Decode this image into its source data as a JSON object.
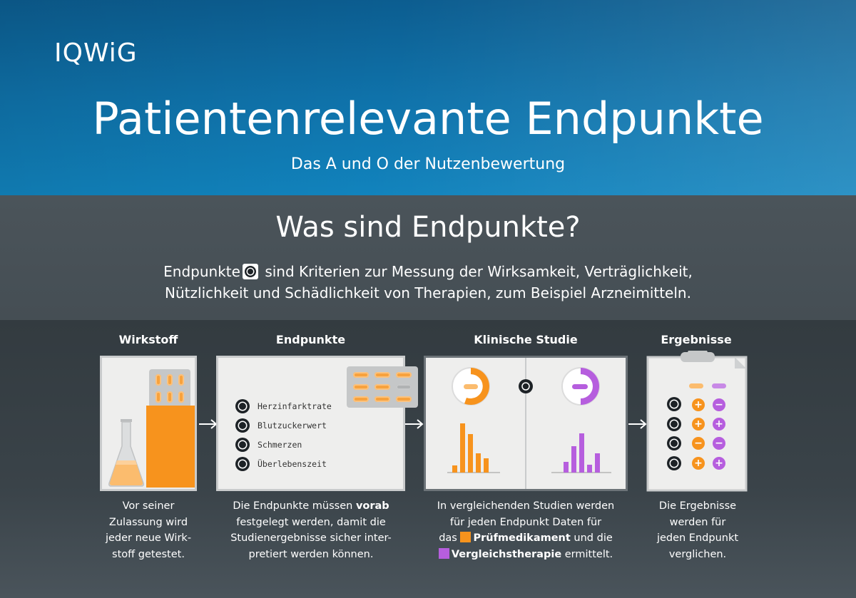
{
  "header": {
    "logo": "IQWiG",
    "title": "Patientenrelevante Endpunkte",
    "subtitle": "Das A und O der Nutzenbewertung"
  },
  "intro": {
    "heading": "Was sind Endpunkte?",
    "line1_a": "Endpunkte",
    "line1_b": "sind Kriterien zur Messung der Wirksamkeit, Verträglichkeit,",
    "line2": "Nützlichkeit und Schädlichkeit von Therapien, zum Beispiel Arzneimitteln."
  },
  "columns": [
    {
      "title": "Wirkstoff",
      "caption": [
        "Vor seiner",
        "Zulassung wird",
        "jeder neue Wirk-",
        "stoff getestet."
      ]
    },
    {
      "title": "Endpunkte",
      "endpoints": [
        "Herzinfarktrate",
        "Blutzuckerwert",
        "Schmerzen",
        "Überlebenszeit"
      ],
      "caption_a": "Die Endpunkte müssen ",
      "caption_bold": "vorab",
      "caption_b": [
        "festgelegt werden, damit die",
        "Studienergebnisse sicher inter-",
        "pretiert werden können."
      ]
    },
    {
      "title": "Klinische Studie",
      "caption_1": "In vergleichenden Studien werden",
      "caption_2": "für jeden Endpunkt Daten für",
      "caption_3a": "das ",
      "caption_3b": "Prüfmedikament",
      "caption_3c": " und die",
      "caption_4a": "Vergleichstherapie",
      "caption_4b": " ermittelt."
    },
    {
      "title": "Ergebnisse",
      "caption": [
        "Die Ergebnisse",
        "werden für",
        "jeden Endpunkt",
        "verglichen."
      ]
    }
  ],
  "colors": {
    "orange": "#f7931d",
    "purple": "#b65ede",
    "header_blue": "#0f72aa",
    "dark": "#3d464c"
  },
  "icons": {
    "endpoint": "endpoint-icon",
    "arrow": "arrow-right-icon",
    "flask": "flask-icon",
    "blister": "blister-pack-icon",
    "clipboard": "clipboard-icon"
  },
  "results_table": [
    [
      "plus",
      "minus"
    ],
    [
      "plus",
      "plus"
    ],
    [
      "minus",
      "minus"
    ],
    [
      "plus",
      "plus"
    ]
  ]
}
